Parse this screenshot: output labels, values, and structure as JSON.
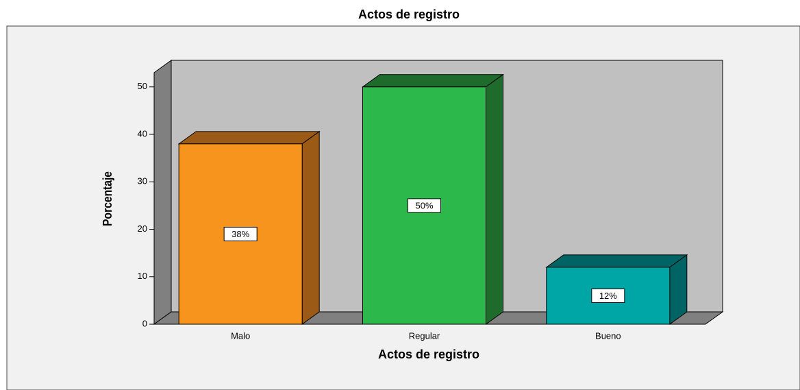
{
  "chart_data": {
    "type": "bar3d",
    "title": "Actos de registro",
    "xlabel": "Actos de registro",
    "ylabel": "Porcentaje",
    "categories": [
      "Malo",
      "Regular",
      "Bueno"
    ],
    "values": [
      38,
      50,
      12
    ],
    "value_labels": [
      "38%",
      "50%",
      "12%"
    ],
    "colors": [
      "#f7941d",
      "#2db84b",
      "#00a5a5"
    ],
    "side_colors": [
      "#9c5a17",
      "#1f6b2c",
      "#006464"
    ],
    "ylim": [
      0,
      53
    ],
    "yticks": [
      0,
      10,
      20,
      30,
      40,
      50
    ]
  }
}
